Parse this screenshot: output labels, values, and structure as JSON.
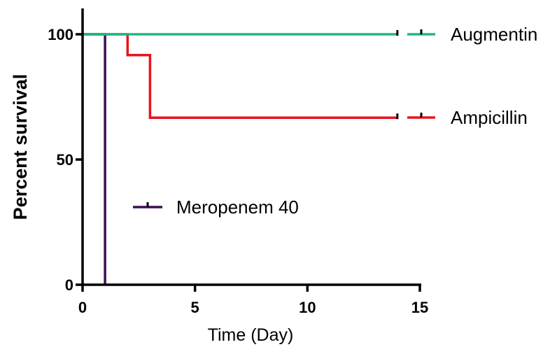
{
  "chart_data": {
    "type": "line",
    "subtype": "kaplan-meier survival (step)",
    "title": "",
    "xlabel": "Time (Day)",
    "ylabel": "Percent survival",
    "xlim": [
      0,
      15
    ],
    "ylim": [
      0,
      100
    ],
    "xticks": [
      0,
      5,
      10,
      15
    ],
    "yticks": [
      0,
      50,
      100
    ],
    "grid": false,
    "series": [
      {
        "name": "Augmentin",
        "color": "#1fb886",
        "points": [
          [
            0,
            100
          ],
          [
            14,
            100
          ]
        ],
        "censored": [
          [
            14,
            100
          ]
        ]
      },
      {
        "name": "Ampicillin",
        "color": "#e8141c",
        "points": [
          [
            0,
            100
          ],
          [
            2,
            100
          ],
          [
            2,
            91.7
          ],
          [
            3,
            91.7
          ],
          [
            3,
            66.7
          ],
          [
            14,
            66.7
          ]
        ],
        "censored": [
          [
            14,
            66.7
          ]
        ]
      },
      {
        "name": "Meropenem 40",
        "color": "#3d0f54",
        "points": [
          [
            0,
            100
          ],
          [
            1,
            100
          ],
          [
            1,
            0
          ]
        ],
        "censored": []
      }
    ],
    "legend": [
      {
        "label": "Augmentin",
        "series": 0
      },
      {
        "label": "Ampicillin",
        "series": 1
      },
      {
        "label": "Meropenem 40",
        "series": 2
      }
    ]
  }
}
